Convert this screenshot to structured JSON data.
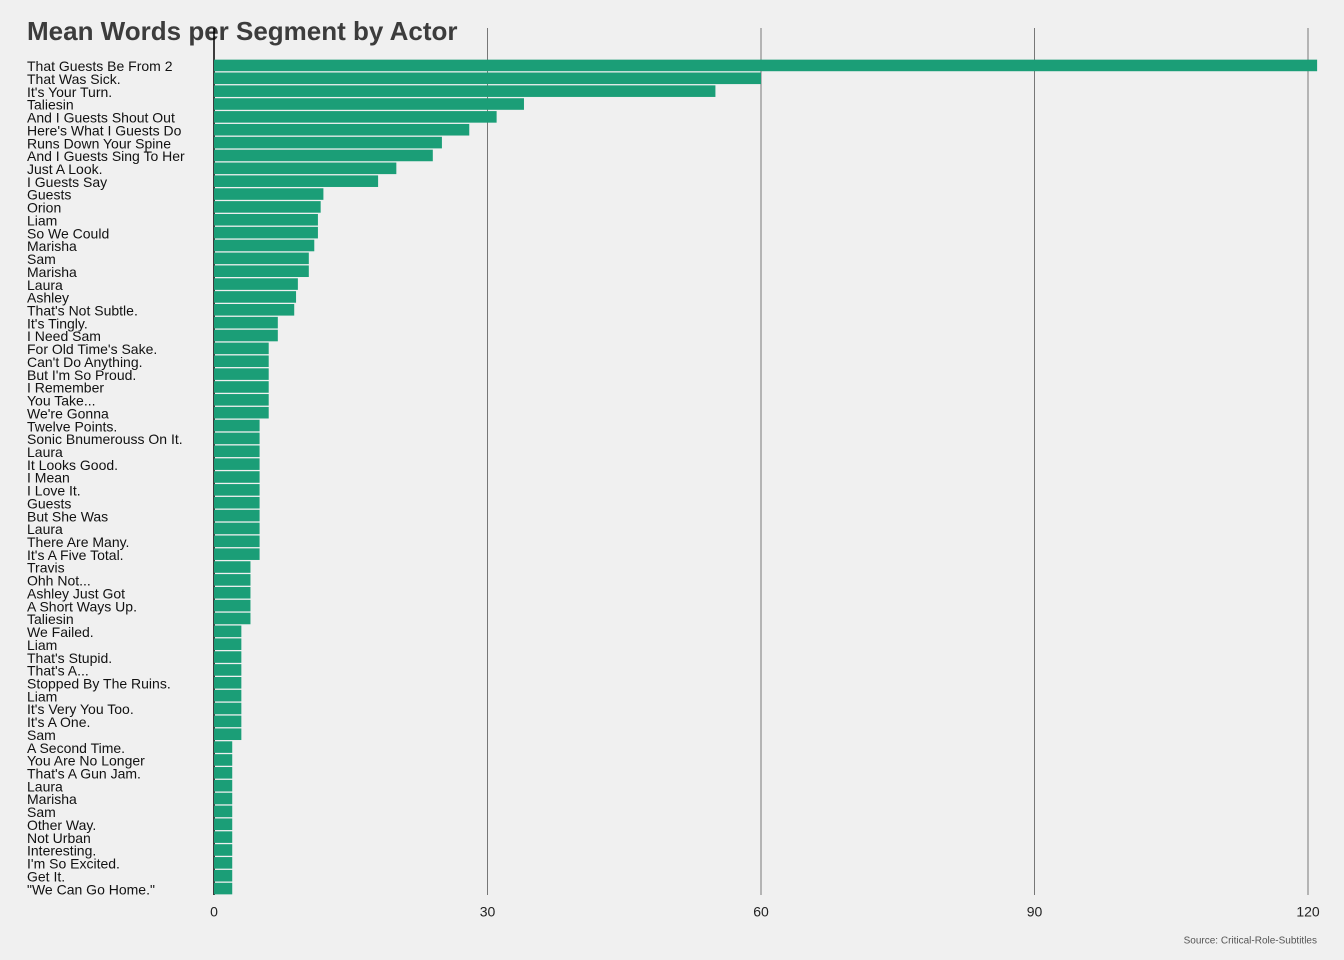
{
  "chart_data": {
    "type": "barh",
    "title": "Mean Words per Segment by Actor",
    "source": "Source: Critical-Role-Subtitles",
    "categories": [
      "That Guests Be From 2",
      "That Was Sick.",
      "It's Your Turn.",
      "Taliesin",
      "And I Guests Shout Out",
      "Here's What I Guests Do",
      "Runs Down Your Spine",
      "And I Guests Sing To Her",
      "Just A Look.",
      "I Guests Say",
      "Guests",
      "Orion",
      "Liam",
      "So We Could",
      "Marisha",
      "Sam",
      "Marisha",
      "Laura",
      "Ashley",
      "That's Not Subtle.",
      "It's Tingly.",
      "I Need Sam",
      "For Old Time's Sake.",
      "Can't Do Anything.",
      "But I'm So Proud.",
      "I Remember",
      "You Take...",
      "We're Gonna",
      "Twelve Points.",
      "Sonic Bnumerouss On It.",
      "Laura",
      "It Looks Good.",
      "I Mean",
      "I Love It.",
      "Guests",
      "But She Was",
      "Laura",
      "There Are Many.",
      "It's A Five Total.",
      "Travis",
      "Ohh Not...",
      "Ashley Just Got",
      "A Short Ways Up.",
      "Taliesin",
      "We Failed.",
      "Liam",
      "That's Stupid.",
      "That's A...",
      "Stopped By The Ruins.",
      "Liam",
      "It's Very You Too.",
      "It's A One.",
      "Sam",
      "A Second Time.",
      "You Are No Longer",
      "That's A Gun Jam.",
      "Laura",
      "Marisha",
      "Sam",
      "Other Way.",
      "Not Urban",
      "Interesting.",
      "I'm So Excited.",
      "Get It.",
      "\"We Can Go Home.\""
    ],
    "values": [
      121,
      60,
      55,
      34,
      31,
      28,
      25,
      24,
      20,
      18,
      12,
      11.7,
      11.4,
      11.4,
      11,
      10.4,
      10.4,
      9.2,
      9,
      8.8,
      7,
      7,
      6,
      6,
      6,
      6,
      6,
      6,
      5,
      5,
      5,
      5,
      5,
      5,
      5,
      5,
      5,
      5,
      5,
      4,
      4,
      4,
      4,
      4,
      3,
      3,
      3,
      3,
      3,
      3,
      3,
      3,
      3,
      2,
      2,
      2,
      2,
      2,
      2,
      2,
      2,
      2,
      2,
      2,
      2
    ],
    "color": "#1b9e77",
    "xlim": [
      0,
      120
    ],
    "xticks": [
      0,
      30,
      60,
      90,
      120
    ],
    "grid": true
  }
}
